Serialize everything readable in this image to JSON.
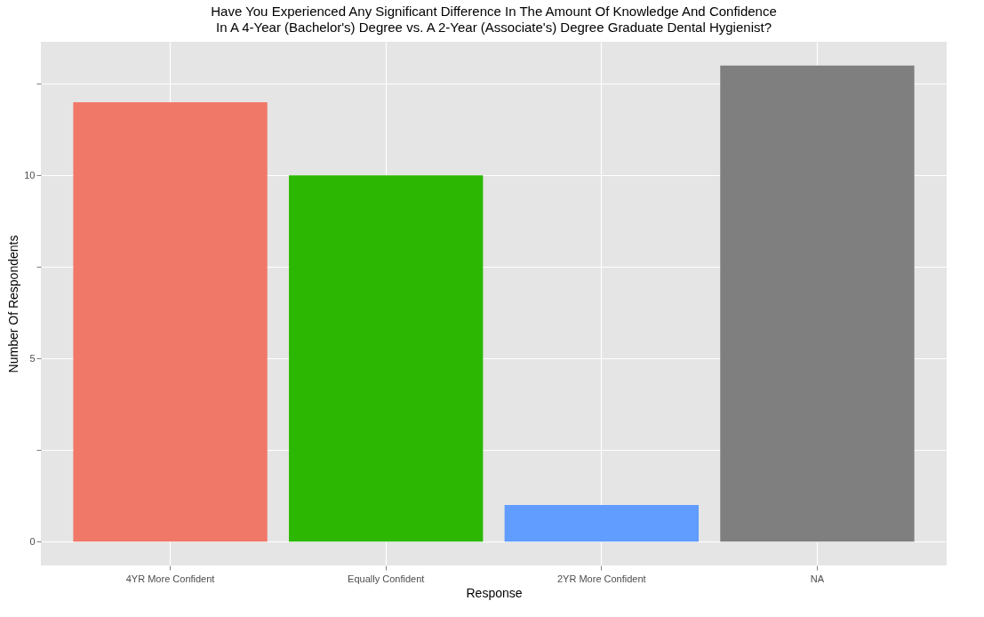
{
  "chart_data": {
    "type": "bar",
    "title": "Have You Experienced Any Significant Difference In The Amount Of Knowledge And Confidence\n In A 4-Year (Bachelor's) Degree vs. A 2-Year (Associate's) Degree Graduate Dental Hygienist?",
    "xlabel": "Response",
    "ylabel": "Number Of Respondents",
    "categories": [
      "4YR More Confident",
      "Equally Confident",
      "2YR More Confident",
      "NA"
    ],
    "values": [
      12,
      10,
      1,
      13
    ],
    "colors": [
      "#f07868",
      "#2cb802",
      "#619cff",
      "#7f7f7f"
    ],
    "ylim": [
      -0.65,
      13.65
    ],
    "yticks": [
      0,
      {
        "value": 2.5,
        "label": null
      },
      5,
      {
        "value": 7.5,
        "label": null
      },
      10,
      {
        "value": 12.5,
        "label": null
      }
    ],
    "grid": true
  }
}
